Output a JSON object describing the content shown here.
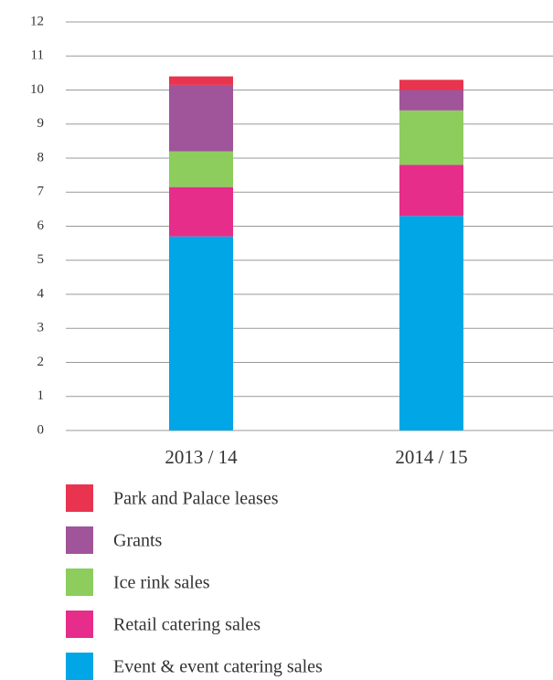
{
  "chart_data": {
    "type": "stacked_bar",
    "categories": [
      "2013 / 14",
      "2014 / 15"
    ],
    "series": [
      {
        "name": "Event & event catering sales",
        "color": "#00a6e6",
        "values": [
          5.7,
          6.3
        ]
      },
      {
        "name": "Retail catering sales",
        "color": "#e62d8a",
        "values": [
          1.45,
          1.5
        ]
      },
      {
        "name": "Ice rink sales",
        "color": "#8ccd5e",
        "values": [
          1.05,
          1.6
        ]
      },
      {
        "name": "Grants",
        "color": "#a05499",
        "values": [
          1.95,
          0.6
        ]
      },
      {
        "name": "Park and Palace leases",
        "color": "#e8344e",
        "values": [
          0.25,
          0.3
        ]
      }
    ],
    "ylim": [
      0,
      12
    ],
    "yticks": [
      0,
      1,
      2,
      3,
      4,
      5,
      6,
      7,
      8,
      9,
      10,
      11,
      12
    ],
    "grid": true
  }
}
